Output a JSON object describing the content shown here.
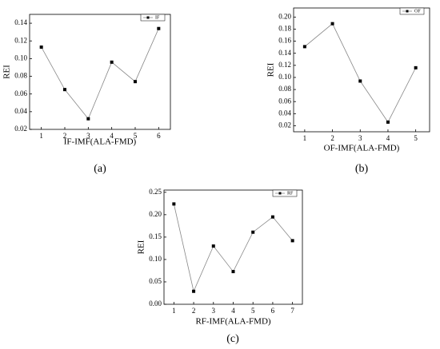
{
  "chart_data": [
    {
      "type": "line",
      "caption": "(a)",
      "xlabel": "IF-IMF(ALA-FMD)",
      "ylabel": "REI",
      "x": [
        1,
        2,
        3,
        4,
        5,
        6
      ],
      "series": [
        {
          "name": "IF",
          "color": "#888888",
          "values": [
            0.113,
            0.065,
            0.032,
            0.096,
            0.074,
            0.134
          ]
        }
      ],
      "xlim": [
        0.5,
        6.5
      ],
      "xticks": [
        1,
        2,
        3,
        4,
        5,
        6
      ],
      "ylim": [
        0.02,
        0.15
      ],
      "yticks": [
        0.02,
        0.04,
        0.06,
        0.08,
        {
          "value": 0.1,
          "label": "0.10"
        },
        0.12,
        0.14
      ],
      "legend": "upper right"
    },
    {
      "type": "line",
      "caption": "(b)",
      "xlabel": "OF-IMF(ALA-FMD)",
      "ylabel": "REI",
      "x": [
        1,
        2,
        3,
        4,
        5
      ],
      "series": [
        {
          "name": "OF",
          "color": "#888888",
          "values": [
            0.151,
            0.189,
            0.094,
            0.026,
            0.116
          ]
        }
      ],
      "xlim": [
        0.6,
        5.5
      ],
      "xticks": [
        1,
        2,
        3,
        4,
        5
      ],
      "ylim": [
        0.01,
        0.215
      ],
      "yticks": [
        0.02,
        0.04,
        0.06,
        0.08,
        {
          "value": 0.1,
          "label": "0.10"
        },
        0.12,
        0.14,
        0.16,
        0.18,
        {
          "value": 0.2,
          "label": "0.20"
        }
      ],
      "legend": "upper right"
    },
    {
      "type": "line",
      "caption": "(c)",
      "xlabel": "RF-IMF(ALA-FMD)",
      "ylabel": "REI",
      "x": [
        1,
        2,
        3,
        4,
        5,
        6,
        7
      ],
      "series": [
        {
          "name": "RF",
          "color": "#888888",
          "values": [
            0.224,
            0.029,
            0.13,
            0.073,
            0.161,
            0.195,
            0.142
          ]
        }
      ],
      "xlim": [
        0.5,
        7.5
      ],
      "xticks": [
        1,
        2,
        3,
        4,
        5,
        6,
        7
      ],
      "ylim": [
        0,
        0.255
      ],
      "yticks": [
        {
          "value": 0,
          "label": "0.00"
        },
        0.05,
        {
          "value": 0.1,
          "label": "0.10"
        },
        0.15,
        {
          "value": 0.2,
          "label": "0.20"
        },
        0.25
      ],
      "legend": "upper right"
    }
  ]
}
